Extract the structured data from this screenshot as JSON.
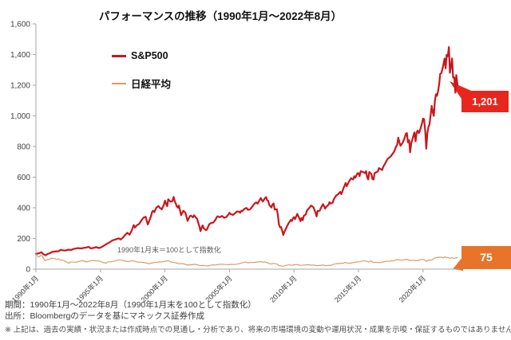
{
  "title": "パフォーマンスの推移（1990年1月〜2022年8月）",
  "legend": {
    "sp500": "S&P500",
    "nikkei": "日経平均"
  },
  "annotation": "1990年1月末＝100として指数化",
  "callouts": {
    "sp500": "1,201",
    "nikkei": "75"
  },
  "footer": {
    "period": "期間：1990年1月〜2022年8月（1990年1月末を100として指数化）",
    "source": "出所：Bloombergのデータを基にマネックス証券作成",
    "disclaimer": "※ 上記は、過去の実績・状況または作成時点での見通し・分析であり、将来の市場環境の変動や運用状況・成果を示唆・保証するものではありません。"
  },
  "colors": {
    "sp500_line": "#c9171c",
    "sp500_badge": "#e7271d",
    "nikkei_line": "#dd9b62",
    "nikkei_badge": "#e8742a",
    "axis": "#a6a6a6",
    "tick_text": "#404040"
  },
  "chart_data": {
    "type": "line",
    "title": "パフォーマンスの推移（1990年1月〜2022年8月）",
    "grid": false,
    "legend_position": "top-left-inside",
    "x_axis": {
      "range": [
        1990,
        2022.67
      ],
      "tick_years": [
        1990,
        1995,
        2000,
        2005,
        2010,
        2015,
        2020
      ],
      "tick_labels": [
        "1990年1月",
        "1995年1月",
        "2000年1月",
        "2005年1月",
        "2010年1月",
        "2015年1月",
        "2020年1月"
      ]
    },
    "y_axis": {
      "range": [
        0,
        1600
      ],
      "tick_values": [
        0,
        200,
        400,
        600,
        800,
        1000,
        1200,
        1400,
        1600
      ],
      "tick_labels": [
        "0",
        "200",
        "400",
        "600",
        "800",
        "1,000",
        "1,200",
        "1,400",
        "1,600"
      ]
    },
    "series": [
      {
        "name": "S&P500",
        "color": "#c9171c",
        "stroke_width": 2.2,
        "end_value": 1201,
        "points": [
          1990,
          100,
          1990.25,
          104,
          1990.42,
          110,
          1990.58,
          97,
          1990.75,
          91,
          1990.92,
          100,
          1991.08,
          104,
          1991.25,
          112,
          1991.5,
          115,
          1991.75,
          117,
          1991.92,
          126,
          1992.08,
          123,
          1992.25,
          121,
          1992.5,
          127,
          1992.75,
          125,
          1992.92,
          132,
          1993.25,
          137,
          1993.5,
          135,
          1993.75,
          139,
          1993.92,
          141,
          1994.08,
          146,
          1994.25,
          135,
          1994.5,
          139,
          1994.67,
          144,
          1994.83,
          138,
          1995,
          140,
          1995.25,
          152,
          1995.5,
          165,
          1995.75,
          177,
          1995.92,
          187,
          1996.17,
          194,
          1996.42,
          201,
          1996.58,
          193,
          1996.75,
          207,
          1996.92,
          224,
          1997.08,
          237,
          1997.25,
          225,
          1997.42,
          251,
          1997.58,
          288,
          1997.67,
          271,
          1997.83,
          287,
          1998,
          295,
          1998.17,
          317,
          1998.33,
          335,
          1998.5,
          342,
          1998.67,
          291,
          1998.83,
          327,
          1998.92,
          347,
          1999,
          373,
          1999.08,
          381,
          1999.17,
          372,
          1999.33,
          401,
          1999.5,
          412,
          1999.58,
          402,
          1999.75,
          390,
          1999.92,
          421,
          2000,
          447,
          2000.08,
          427,
          2000.17,
          411,
          2000.25,
          456,
          2000.42,
          440,
          2000.58,
          444,
          2000.67,
          471,
          2000.75,
          446,
          2000.92,
          409,
          2001,
          401,
          2001.08,
          415,
          2001.25,
          352,
          2001.42,
          381,
          2001.58,
          368,
          2001.75,
          315,
          2001.92,
          344,
          2002,
          349,
          2002.17,
          338,
          2002.25,
          351,
          2002.5,
          327,
          2002.58,
          302,
          2002.67,
          278,
          2002.75,
          248,
          2002.83,
          269,
          2002.92,
          285,
          2003,
          267,
          2003.17,
          255,
          2003.25,
          257,
          2003.42,
          292,
          2003.58,
          302,
          2003.75,
          304,
          2003.92,
          323,
          2004,
          338,
          2004.08,
          345,
          2004.25,
          338,
          2004.42,
          347,
          2004.58,
          335,
          2004.75,
          339,
          2004.92,
          357,
          2005,
          368,
          2005.08,
          360,
          2005.25,
          354,
          2005.42,
          363,
          2005.58,
          376,
          2005.75,
          375,
          2005.83,
          368,
          2005.92,
          381,
          2006,
          379,
          2006.17,
          394,
          2006.33,
          399,
          2006.42,
          387,
          2006.58,
          389,
          2006.75,
          406,
          2006.92,
          426,
          2007,
          431,
          2007.08,
          436,
          2007.17,
          427,
          2007.33,
          449,
          2007.42,
          464,
          2007.58,
          441,
          2007.75,
          463,
          2007.83,
          470,
          2007.92,
          450,
          2008,
          446,
          2008.08,
          419,
          2008.25,
          402,
          2008.33,
          422,
          2008.42,
          428,
          2008.5,
          389,
          2008.67,
          391,
          2008.75,
          355,
          2008.83,
          294,
          2008.92,
          272,
          2009,
          274,
          2009.08,
          251,
          2009.17,
          223,
          2009.25,
          242,
          2009.42,
          273,
          2009.58,
          299,
          2009.75,
          321,
          2009.83,
          314,
          2009.92,
          331,
          2010,
          339,
          2010.08,
          326,
          2010.25,
          360,
          2010.42,
          331,
          2010.5,
          313,
          2010.58,
          334,
          2010.67,
          319,
          2010.75,
          347,
          2010.92,
          358,
          2011,
          382,
          2011.17,
          398,
          2011.33,
          415,
          2011.5,
          404,
          2011.67,
          369,
          2011.75,
          344,
          2011.83,
          380,
          2011.92,
          379,
          2012,
          382,
          2012.08,
          399,
          2012.25,
          424,
          2012.42,
          395,
          2012.5,
          407,
          2012.67,
          420,
          2012.75,
          437,
          2012.83,
          428,
          2013,
          433,
          2013.08,
          455,
          2013.25,
          479,
          2013.42,
          489,
          2013.58,
          504,
          2013.67,
          489,
          2013.83,
          526,
          2014,
          562,
          2014.08,
          541,
          2014.25,
          570,
          2014.42,
          593,
          2014.58,
          585,
          2014.67,
          606,
          2014.75,
          597,
          2014.92,
          625,
          2015,
          626,
          2015.08,
          607,
          2015.17,
          639,
          2015.33,
          634,
          2015.5,
          627,
          2015.58,
          639,
          2015.67,
          600,
          2015.75,
          585,
          2015.83,
          634,
          2016,
          621,
          2016.08,
          587,
          2016.17,
          585,
          2016.25,
          626,
          2016.5,
          638,
          2016.58,
          659,
          2016.83,
          647,
          2016.92,
          669,
          2017,
          680,
          2017.08,
          692,
          2017.25,
          719,
          2017.5,
          736,
          2017.75,
          765,
          2017.92,
          801,
          2018,
          813,
          2018.08,
          858,
          2018.17,
          826,
          2018.25,
          805,
          2018.42,
          824,
          2018.58,
          858,
          2018.67,
          884,
          2018.75,
          888,
          2018.83,
          827,
          2018.92,
          841,
          2019,
          762,
          2019.08,
          821,
          2019.17,
          845,
          2019.33,
          892,
          2019.42,
          834,
          2019.5,
          892,
          2019.58,
          904,
          2019.67,
          888,
          2019.75,
          902,
          2019.92,
          952,
          2020,
          982,
          2020.08,
          979,
          2020.17,
          898,
          2020.25,
          786,
          2020.33,
          886,
          2020.42,
          928,
          2020.5,
          944,
          2020.58,
          999,
          2020.67,
          1065,
          2020.75,
          1025,
          2020.83,
          1000,
          2020.92,
          1100,
          2021,
          1141,
          2021.08,
          1131,
          2021.17,
          1164,
          2021.25,
          1209,
          2021.33,
          1273,
          2021.42,
          1279,
          2021.5,
          1305,
          2021.58,
          1335,
          2021.67,
          1374,
          2021.75,
          1310,
          2021.83,
          1398,
          2021.92,
          1388,
          2022,
          1449,
          2022.08,
          1281,
          2022.17,
          1328,
          2022.25,
          1375,
          2022.33,
          1250,
          2022.42,
          1251,
          2022.5,
          1151,
          2022.58,
          1266,
          2022.67,
          1201
        ]
      },
      {
        "name": "日経平均",
        "color": "#dd9b62",
        "stroke_width": 1.2,
        "end_value": 75,
        "points": [
          1990,
          100,
          1990.08,
          91,
          1990.17,
          81,
          1990.25,
          80,
          1990.33,
          89,
          1990.5,
          86,
          1990.58,
          70,
          1990.75,
          54,
          1990.83,
          62,
          1990.92,
          64,
          1991,
          63,
          1991.17,
          71,
          1991.42,
          70,
          1991.58,
          64,
          1991.75,
          67,
          1991.83,
          61,
          1992,
          59,
          1992.17,
          56,
          1992.33,
          48,
          1992.58,
          38,
          1992.67,
          48,
          1992.92,
          45,
          1993.17,
          45,
          1993.42,
          53,
          1993.58,
          55,
          1993.75,
          52,
          1993.92,
          47,
          1994.17,
          53,
          1994.42,
          56,
          1994.58,
          55,
          1994.92,
          53,
          1995.17,
          44,
          1995.42,
          39,
          1995.58,
          48,
          1995.92,
          49,
          1996.17,
          54,
          1996.42,
          61,
          1996.67,
          58,
          1996.92,
          52,
          1997.17,
          49,
          1997.42,
          55,
          1997.67,
          51,
          1997.92,
          45,
          1998.17,
          45,
          1998.42,
          42,
          1998.58,
          39,
          1998.75,
          35,
          1998.92,
          39,
          1999.17,
          43,
          1999.42,
          45,
          1999.58,
          48,
          1999.75,
          47,
          1999.92,
          50,
          2000.17,
          54,
          2000.25,
          55,
          2000.42,
          48,
          2000.58,
          44,
          2000.75,
          43,
          2000.92,
          39,
          2001,
          37,
          2001.17,
          35,
          2001.33,
          37,
          2001.5,
          33,
          2001.75,
          26,
          2001.92,
          29,
          2002,
          28,
          2002.25,
          31,
          2002.5,
          29,
          2002.75,
          23,
          2002.92,
          24,
          2003.17,
          22,
          2003.33,
          21,
          2003.5,
          24,
          2003.67,
          28,
          2003.92,
          27,
          2004.17,
          31,
          2004.42,
          32,
          2004.67,
          30,
          2004.92,
          29,
          2005.17,
          31,
          2005.42,
          30,
          2005.58,
          32,
          2005.75,
          36,
          2005.92,
          40,
          2006.08,
          43,
          2006.25,
          46,
          2006.42,
          41,
          2006.58,
          43,
          2006.92,
          44,
          2007.17,
          47,
          2007.5,
          49,
          2007.58,
          45,
          2007.75,
          47,
          2007.92,
          42,
          2008,
          41,
          2008.08,
          36,
          2008.25,
          34,
          2008.42,
          38,
          2008.58,
          35,
          2008.75,
          31,
          2008.83,
          23,
          2008.92,
          23,
          2009.08,
          20,
          2009.17,
          19,
          2009.33,
          24,
          2009.5,
          27,
          2009.67,
          28,
          2009.83,
          25,
          2010,
          28,
          2010.25,
          30,
          2010.42,
          26,
          2010.58,
          25,
          2010.83,
          27,
          2011,
          28,
          2011.17,
          29,
          2011.25,
          26,
          2011.5,
          27,
          2011.67,
          24,
          2011.83,
          23,
          2012,
          24,
          2012.25,
          27,
          2012.42,
          23,
          2012.67,
          24,
          2012.92,
          26,
          2013,
          30,
          2013.17,
          33,
          2013.33,
          37,
          2013.5,
          36,
          2013.67,
          39,
          2013.83,
          38,
          2013.92,
          42,
          2014,
          44,
          2014.08,
          40,
          2014.33,
          39,
          2014.58,
          42,
          2014.83,
          47,
          2015.08,
          48,
          2015.33,
          53,
          2015.5,
          55,
          2015.67,
          51,
          2015.75,
          47,
          2015.92,
          53,
          2016,
          51,
          2016.17,
          43,
          2016.33,
          45,
          2016.5,
          42,
          2016.75,
          44,
          2016.92,
          47,
          2017.08,
          51,
          2017.33,
          51,
          2017.58,
          54,
          2017.83,
          57,
          2017.92,
          61,
          2018.08,
          62,
          2018.25,
          58,
          2018.5,
          60,
          2018.75,
          65,
          2018.83,
          59,
          2018.92,
          60,
          2019,
          54,
          2019.17,
          58,
          2019.42,
          55,
          2019.58,
          55,
          2019.75,
          61,
          2019.92,
          64,
          2020,
          64,
          2020.17,
          57,
          2020.25,
          51,
          2020.42,
          59,
          2020.58,
          58,
          2020.75,
          62,
          2020.83,
          71,
          2021,
          74,
          2021.17,
          78,
          2021.42,
          78,
          2021.58,
          74,
          2021.67,
          81,
          2021.83,
          75,
          2021.92,
          77,
          2022,
          74,
          2022.08,
          71,
          2022.25,
          75,
          2022.33,
          72,
          2022.5,
          71,
          2022.58,
          75,
          2022.67,
          75
        ]
      }
    ]
  }
}
